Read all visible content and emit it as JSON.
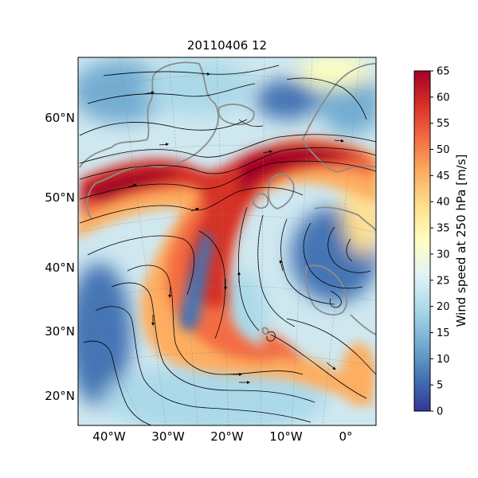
{
  "map": {
    "title": "20110406 12",
    "variable": "Wind speed at 250 hPa",
    "lon_labels": [
      "40°W",
      "30°W",
      "20°W",
      "10°W",
      "0°"
    ],
    "lat_labels": [
      "60°N",
      "50°N",
      "40°N",
      "30°N",
      "20°N"
    ],
    "layers": [
      "wind-speed-field",
      "streamlines",
      "coastlines",
      "graticule"
    ],
    "colorbar": {
      "label": "Wind speed at 250 hPa [m/s]",
      "colormap": "RdYlBu_r",
      "min": 0,
      "max": 65,
      "ticks": [
        0,
        5,
        10,
        15,
        20,
        25,
        30,
        35,
        40,
        45,
        50,
        55,
        60,
        65
      ],
      "colors": [
        "#313695",
        "#4575b4",
        "#74add1",
        "#abd9e9",
        "#e0f3f8",
        "#ffffbf",
        "#fee090",
        "#fdae61",
        "#f46d43",
        "#d73027",
        "#a50026"
      ]
    },
    "colors": {
      "coastline": "#8c8c8c",
      "streamline": "#000000",
      "graticule": "#888888"
    }
  }
}
